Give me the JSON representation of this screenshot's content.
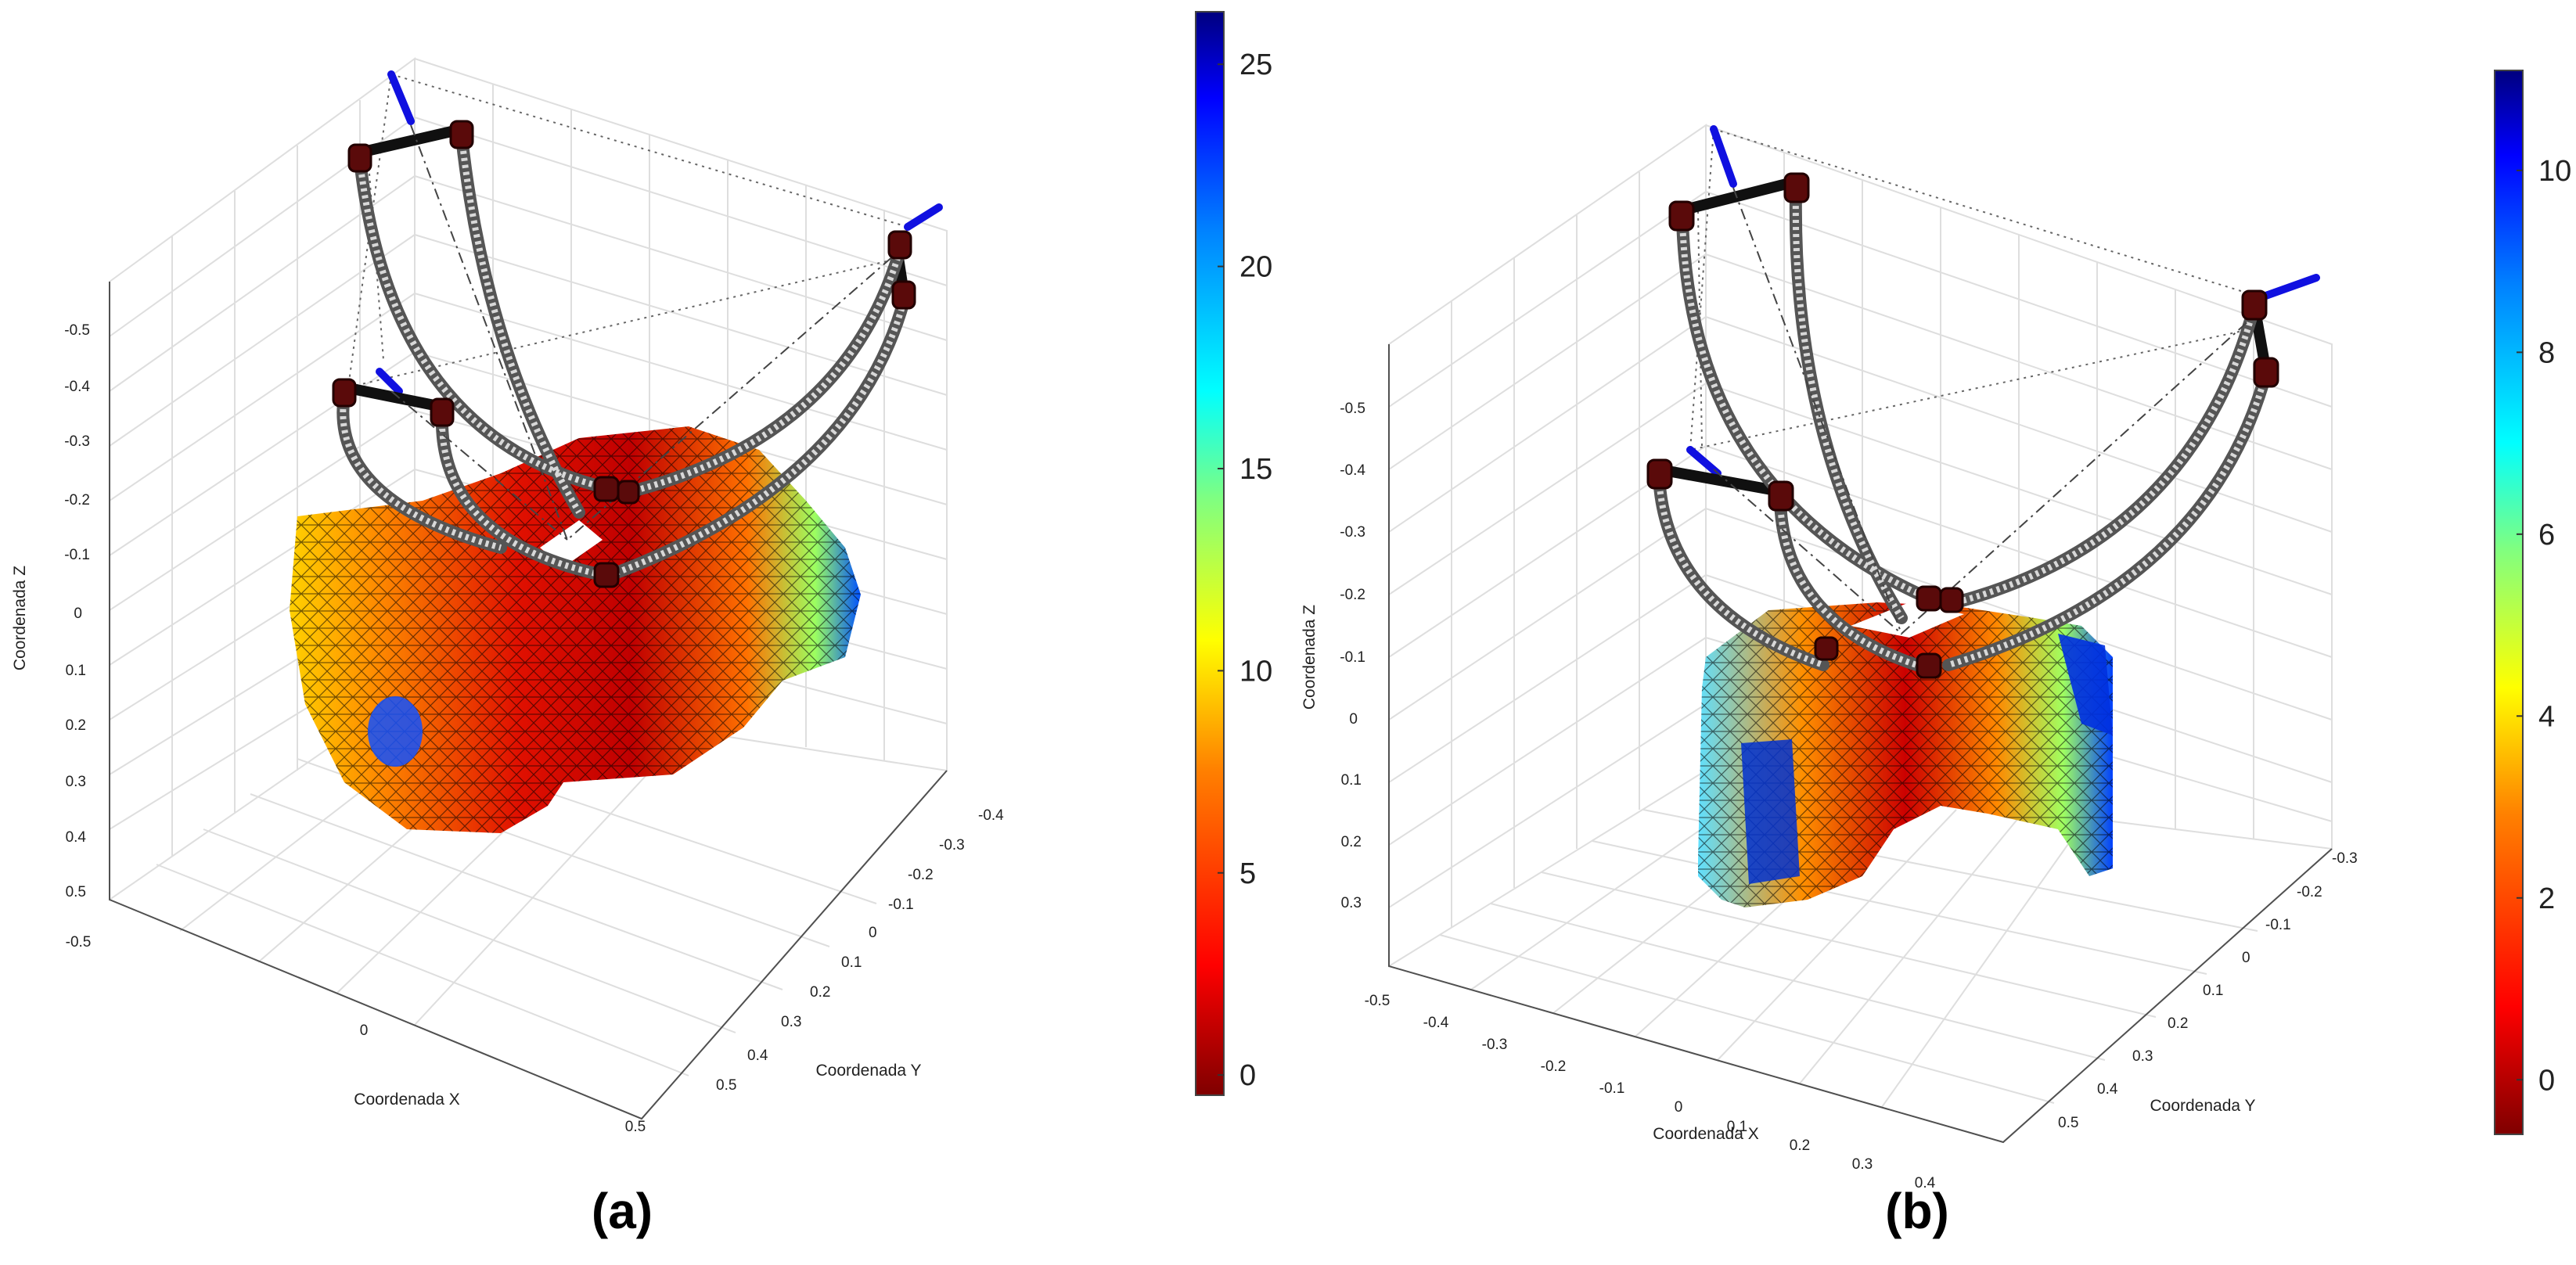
{
  "panels": [
    {
      "caption": "(a)",
      "colorbar": {
        "ticks": [
          "25",
          "20",
          "15",
          "10",
          "5",
          "0"
        ],
        "tick_values": [
          25,
          20,
          15,
          10,
          5,
          0
        ],
        "min": -0.5,
        "max": 26.3
      },
      "axes": {
        "xlabel": "Coordenada X",
        "ylabel": "Coordenada Y",
        "zlabel": "Coordenada Z",
        "x_ticks": [
          "-0.5",
          "0",
          "0.5"
        ],
        "y_ticks": [
          "-0.4",
          "-0.3",
          "-0.2",
          "-0.1",
          "0",
          "0.1",
          "0.2",
          "0.3",
          "0.4",
          "0.5"
        ],
        "z_ticks": [
          "-0.5",
          "-0.4",
          "-0.3",
          "-0.2",
          "-0.1",
          "0",
          "0.1",
          "0.2",
          "0.3",
          "0.4",
          "0.5"
        ]
      }
    },
    {
      "caption": "(b)",
      "colorbar": {
        "ticks": [
          "10",
          "8",
          "6",
          "4",
          "2",
          "0"
        ],
        "tick_values": [
          10,
          8,
          6,
          4,
          2,
          0
        ],
        "min": -0.6,
        "max": 11.1
      },
      "axes": {
        "xlabel": "Coordenada X",
        "ylabel": "Coordenada Y",
        "zlabel": "Coordenada Z",
        "x_ticks": [
          "-0.5",
          "-0.4",
          "-0.3",
          "-0.2",
          "-0.1",
          "0",
          "0.1",
          "0.2",
          "0.3",
          "0.4"
        ],
        "y_ticks": [
          "-0.3",
          "-0.2",
          "-0.1",
          "0",
          "0.1",
          "0.2",
          "0.3",
          "0.4",
          "0.5"
        ],
        "z_ticks": [
          "-0.5",
          "-0.4",
          "-0.3",
          "-0.2",
          "-0.1",
          "0",
          "0.1",
          "0.2",
          "0.3"
        ]
      }
    }
  ],
  "colors": {
    "colormap": [
      "#7f0000",
      "#ff0000",
      "#ff8000",
      "#ffff00",
      "#80ff80",
      "#00ffff",
      "#0080ff",
      "#0000ff",
      "#00007f"
    ],
    "rod": "#101010",
    "joint": "#5a0a0a",
    "tool": "#1010e0",
    "cable": "#8a8a8a",
    "grid": "#dedede"
  }
}
